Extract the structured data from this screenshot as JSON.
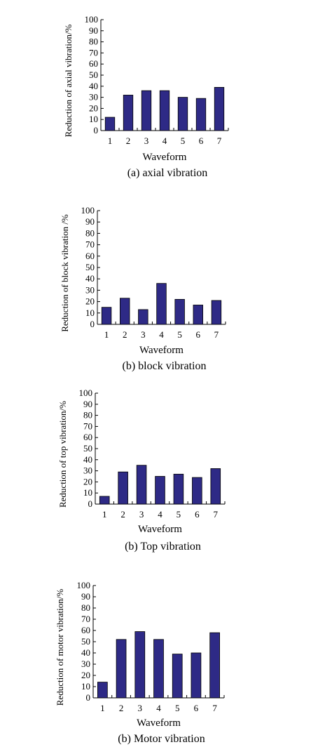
{
  "colors": {
    "bar": "#2e2a86",
    "bar_stroke": "#000000",
    "axis": "#000000"
  },
  "chart_data": [
    {
      "type": "bar",
      "categories": [
        "1",
        "2",
        "3",
        "4",
        "5",
        "6",
        "7"
      ],
      "values": [
        12,
        32,
        36,
        36,
        30,
        29,
        39
      ],
      "ylabel": "Reduction of axial vibration/%",
      "xlabel": "Waveform",
      "caption": "(a) axial vibration",
      "ylim": [
        0,
        100
      ],
      "yticks": [
        "0",
        "10",
        "20",
        "30",
        "40",
        "50",
        "60",
        "70",
        "80",
        "90",
        "100"
      ]
    },
    {
      "type": "bar",
      "categories": [
        "1",
        "2",
        "3",
        "4",
        "5",
        "6",
        "7"
      ],
      "values": [
        15,
        23,
        13,
        36,
        22,
        17,
        21
      ],
      "ylabel": "Reduction of block vibration /%",
      "xlabel": "Waveform",
      "caption": "(b) block vibration",
      "ylim": [
        0,
        100
      ],
      "yticks": [
        "0",
        "10",
        "20",
        "30",
        "40",
        "50",
        "60",
        "70",
        "80",
        "90",
        "100"
      ]
    },
    {
      "type": "bar",
      "categories": [
        "1",
        "2",
        "3",
        "4",
        "5",
        "6",
        "7"
      ],
      "values": [
        7,
        29,
        35,
        25,
        27,
        24,
        32
      ],
      "ylabel": "Reduction of top vibration/%",
      "xlabel": "Waveform",
      "caption": "(b) Top vibration",
      "ylim": [
        0,
        100
      ],
      "yticks": [
        "0",
        "10",
        "20",
        "30",
        "40",
        "50",
        "60",
        "70",
        "80",
        "90",
        "100"
      ]
    },
    {
      "type": "bar",
      "categories": [
        "1",
        "2",
        "3",
        "4",
        "5",
        "6",
        "7"
      ],
      "values": [
        14,
        52,
        59,
        52,
        39,
        40,
        58
      ],
      "ylabel": "Reduction of motor vibration/%",
      "xlabel": "Waveform",
      "caption": "(b) Motor vibration",
      "ylim": [
        0,
        100
      ],
      "yticks": [
        "0",
        "10",
        "20",
        "30",
        "40",
        "50",
        "60",
        "70",
        "80",
        "90",
        "100"
      ]
    }
  ]
}
